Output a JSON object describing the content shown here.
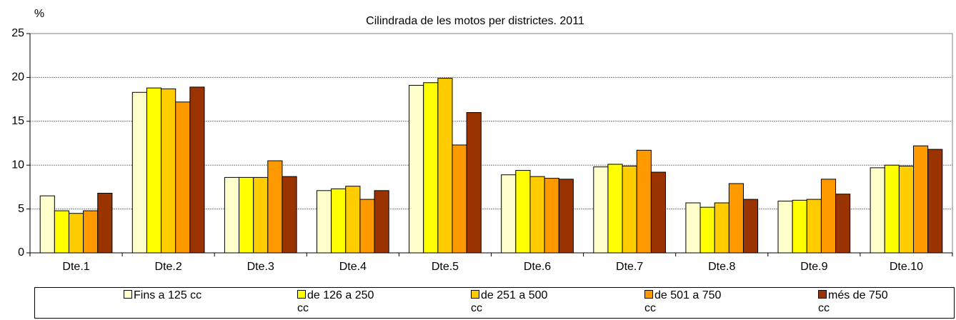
{
  "chart_data": {
    "type": "bar",
    "title": "Cilindrada de les motos per districtes. 2011",
    "y_label": "%",
    "categories": [
      "Dte.1",
      "Dte.2",
      "Dte.3",
      "Dte.4",
      "Dte.5",
      "Dte.6",
      "Dte.7",
      "Dte.8",
      "Dte.9",
      "Dte.10"
    ],
    "series": [
      {
        "name": "Fins a 125 cc",
        "color": "#ffffcc",
        "values": [
          6.5,
          18.3,
          8.6,
          7.1,
          19.1,
          8.9,
          9.8,
          5.7,
          5.9,
          9.7
        ]
      },
      {
        "name": "de 126 a 250 cc",
        "color": "#ffff00",
        "values": [
          4.8,
          18.8,
          8.6,
          7.3,
          19.4,
          9.4,
          10.1,
          5.2,
          6.0,
          10.0
        ]
      },
      {
        "name": "de 251 a 500 cc",
        "color": "#ffcc00",
        "values": [
          4.5,
          18.7,
          8.6,
          7.6,
          19.9,
          8.7,
          9.9,
          5.7,
          6.1,
          9.9
        ]
      },
      {
        "name": "de 501 a 750 cc",
        "color": "#ff9900",
        "values": [
          4.8,
          17.2,
          10.5,
          6.1,
          12.3,
          8.5,
          11.7,
          7.9,
          8.4,
          12.2
        ]
      },
      {
        "name": "més de 750 cc",
        "color": "#993300",
        "values": [
          6.8,
          18.9,
          8.7,
          7.1,
          16.0,
          8.4,
          9.2,
          6.1,
          6.7,
          11.8
        ]
      }
    ],
    "ylim": [
      0,
      25
    ],
    "yticks": [
      0,
      5,
      10,
      15,
      20,
      25
    ],
    "grid": true
  }
}
